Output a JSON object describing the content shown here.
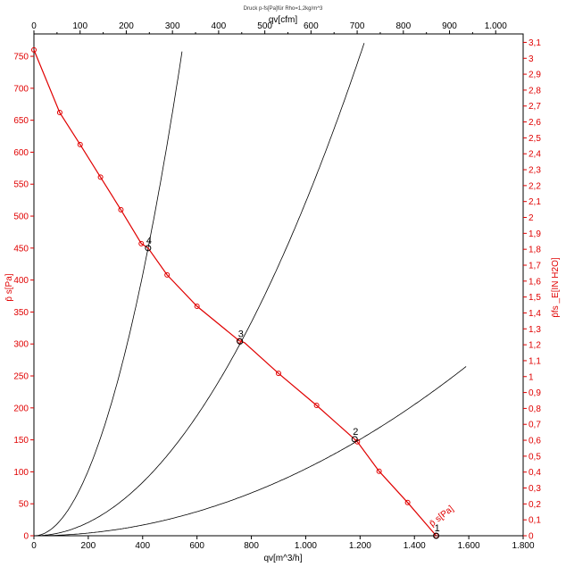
{
  "chart_data": {
    "type": "line",
    "title": "Druck p-fs[Pa]für Rho=1,2kg/m^3",
    "xlabel": "qv[m^3/h]",
    "ylabel": "p̄ s[Pa]",
    "x2label": "qv[cfm]",
    "y2label": "p̄fs _E[IN H2O]",
    "xlim": [
      0,
      1800
    ],
    "ylim": [
      0,
      785
    ],
    "x2lim": [
      0,
      1059.44
    ],
    "y2lim": [
      0,
      3.153
    ],
    "x_ticks": [
      0,
      200,
      400,
      600,
      800,
      1000,
      1200,
      1400,
      1600,
      1800
    ],
    "x_tick_labels": [
      "0",
      "200",
      "400",
      "600",
      "800",
      "1.000",
      "1.200",
      "1.400",
      "1.600",
      "1.800"
    ],
    "y_ticks": [
      0,
      50,
      100,
      150,
      200,
      250,
      300,
      350,
      400,
      450,
      500,
      550,
      600,
      650,
      700,
      750
    ],
    "y_tick_labels": [
      "0",
      "50",
      "100",
      "150",
      "200",
      "250",
      "300",
      "350",
      "400",
      "450",
      "500",
      "550",
      "600",
      "650",
      "700",
      "750"
    ],
    "x2_ticks": [
      0,
      50,
      100,
      150,
      200,
      250,
      300,
      350,
      400,
      450,
      500,
      550,
      600,
      650,
      700,
      750,
      800,
      850,
      900,
      950,
      1000
    ],
    "x2_tick_labels": [
      "0",
      "",
      "100",
      "",
      "200",
      "",
      "300",
      "",
      "400",
      "",
      "500",
      "",
      "600",
      "",
      "700",
      "",
      "800",
      "",
      "900",
      "",
      "1.000"
    ],
    "y2_ticks": [
      0,
      0.1,
      0.2,
      0.3,
      0.4,
      0.5,
      0.6,
      0.7,
      0.8,
      0.9,
      1.0,
      1.1,
      1.2,
      1.3,
      1.4,
      1.5,
      1.6,
      1.7,
      1.8,
      1.9,
      2.0,
      2.1,
      2.2,
      2.3,
      2.4,
      2.5,
      2.6,
      2.7,
      2.8,
      2.9,
      3.0,
      3.1
    ],
    "y2_tick_labels": [
      "0",
      "0,1",
      "0,2",
      "0,3",
      "0,4",
      "0,5",
      "0,6",
      "0,7",
      "0,8",
      "0,9",
      "1",
      "1,1",
      "1,2",
      "1,3",
      "1,4",
      "1,5",
      "1,6",
      "1,7",
      "1,8",
      "1,9",
      "2",
      "2,1",
      "2,2",
      "2,3",
      "2,4",
      "2,5",
      "2,6",
      "2,7",
      "2,8",
      "2,9",
      "3",
      "3,1"
    ],
    "grid": false,
    "series": [
      {
        "name": "p̄ s[Pa]",
        "color": "#e00000",
        "x": [
          0,
          95,
          170,
          245,
          320,
          395,
          420,
          490,
          600,
          755,
          775,
          900,
          1040,
          1180,
          1190,
          1270,
          1375,
          1480
        ],
        "y": [
          760,
          662,
          612,
          561,
          510,
          457,
          450,
          408,
          359,
          305,
          302,
          254,
          204,
          151,
          147,
          101,
          52,
          0
        ],
        "markers_x": [
          0,
          95,
          170,
          245,
          320,
          395,
          490,
          600,
          755,
          900,
          1040,
          1190,
          1270,
          1375,
          1480
        ],
        "markers_y": [
          760,
          662,
          612,
          561,
          510,
          457,
          408,
          359,
          305,
          254,
          204,
          147,
          101,
          52,
          0
        ]
      },
      {
        "kind": "system",
        "coeff": 0.00255,
        "x_max": 545
      },
      {
        "kind": "system",
        "coeff": 0.000522,
        "x_max": 1215
      },
      {
        "kind": "system",
        "coeff": 0.0001047,
        "x_max": 1590
      }
    ],
    "operating_points": [
      {
        "label": "1",
        "x": 1480,
        "y": 0
      },
      {
        "label": "2",
        "x": 1180,
        "y": 151
      },
      {
        "label": "3",
        "x": 758,
        "y": 304
      },
      {
        "label": "4",
        "x": 420,
        "y": 450
      }
    ]
  }
}
